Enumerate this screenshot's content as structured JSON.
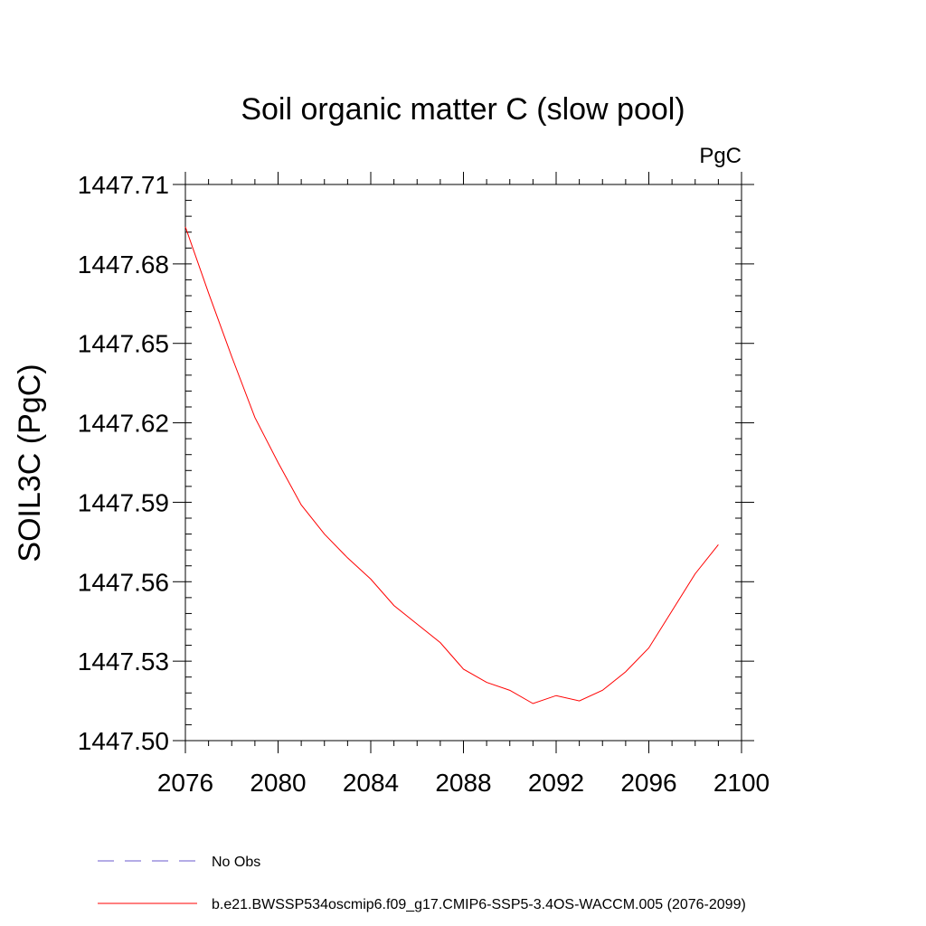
{
  "chart_data": {
    "type": "line",
    "title": "Soil organic matter C (slow pool)",
    "units_label": "PgC",
    "ylabel": "SOIL3C  (PgC)",
    "xlabel": "",
    "xlim": [
      2076,
      2100
    ],
    "ylim": [
      1447.5,
      1447.71
    ],
    "x_ticks": [
      "2076",
      "2080",
      "2084",
      "2088",
      "2092",
      "2096",
      "2100"
    ],
    "x_tick_values": [
      2076,
      2080,
      2084,
      2088,
      2092,
      2096,
      2100
    ],
    "y_ticks": [
      "1447.50",
      "1447.53",
      "1447.56",
      "1447.59",
      "1447.62",
      "1447.65",
      "1447.68",
      "1447.71"
    ],
    "y_tick_values": [
      1447.5,
      1447.53,
      1447.56,
      1447.59,
      1447.62,
      1447.65,
      1447.68,
      1447.71
    ],
    "grid": false,
    "legend_position": "bottom",
    "series": [
      {
        "name": "No Obs",
        "color": "#6a5acd",
        "dash": "dashed",
        "x": [],
        "y": []
      },
      {
        "name": "b.e21.BWSSP534oscmip6.f09_g17.CMIP6-SSP5-3.4OS-WACCM.005 (2076-2099)",
        "color": "#ff0000",
        "dash": "solid",
        "x": [
          2076,
          2077,
          2078,
          2079,
          2080,
          2081,
          2082,
          2083,
          2084,
          2085,
          2086,
          2087,
          2088,
          2089,
          2090,
          2091,
          2092,
          2093,
          2094,
          2095,
          2096,
          2097,
          2098,
          2099
        ],
        "y": [
          1447.694,
          1447.669,
          1447.645,
          1447.622,
          1447.605,
          1447.589,
          1447.578,
          1447.569,
          1447.561,
          1447.551,
          1447.544,
          1447.537,
          1447.527,
          1447.522,
          1447.519,
          1447.514,
          1447.517,
          1447.515,
          1447.519,
          1447.526,
          1447.535,
          1447.549,
          1447.563,
          1447.574
        ]
      }
    ]
  }
}
